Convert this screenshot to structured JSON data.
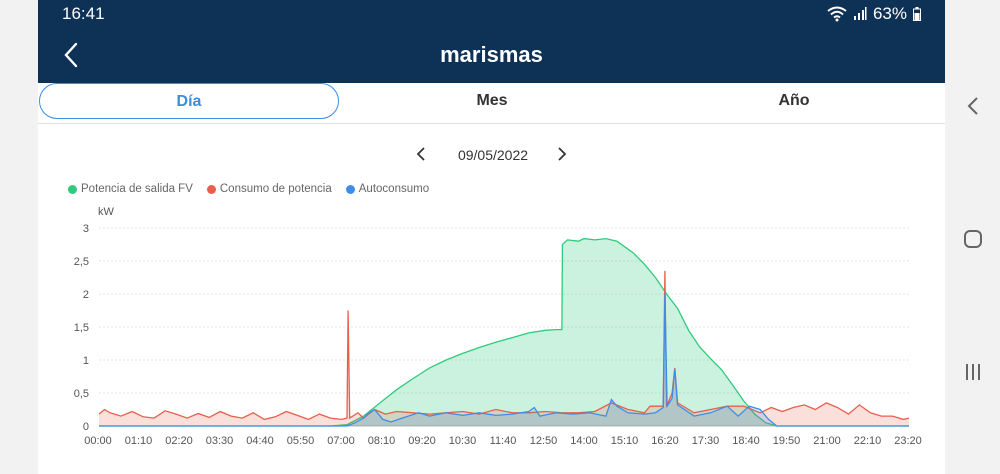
{
  "status": {
    "time": "16:41",
    "battery": "63%"
  },
  "header": {
    "title": "marismas"
  },
  "tabs": [
    {
      "label": "Día"
    },
    {
      "label": "Mes"
    },
    {
      "label": "Año"
    }
  ],
  "date": {
    "value": "09/05/2022"
  },
  "colors": {
    "pv": "#2fca7d",
    "consumo": "#e8604c",
    "auto": "#3d8ee8",
    "header": "#0e3156",
    "accent": "#3c8ce0"
  },
  "chart_data": {
    "type": "area",
    "ylabel": "kW",
    "ylim": [
      0,
      3
    ],
    "yticks": [
      "0",
      "0,5",
      "1",
      "1,5",
      "2",
      "2,5",
      "3"
    ],
    "xticks": [
      "00:00",
      "01:10",
      "02:20",
      "03:30",
      "04:40",
      "05:50",
      "07:00",
      "08:10",
      "09:20",
      "10:30",
      "11:40",
      "12:50",
      "14:00",
      "15:10",
      "16:20",
      "17:30",
      "18:40",
      "19:50",
      "21:00",
      "22:10",
      "23:20"
    ],
    "x_start_minutes": 0,
    "x_end_minutes": 1470,
    "series": [
      {
        "name": "Potencia de salida FV",
        "color": "#2fca7d",
        "points": [
          [
            0,
            0
          ],
          [
            420,
            0
          ],
          [
            450,
            0.02
          ],
          [
            480,
            0.15
          ],
          [
            510,
            0.35
          ],
          [
            540,
            0.55
          ],
          [
            570,
            0.72
          ],
          [
            600,
            0.88
          ],
          [
            630,
            1.0
          ],
          [
            660,
            1.1
          ],
          [
            690,
            1.19
          ],
          [
            720,
            1.27
          ],
          [
            750,
            1.34
          ],
          [
            780,
            1.41
          ],
          [
            810,
            1.45
          ],
          [
            830,
            1.46
          ],
          [
            840,
            1.46
          ],
          [
            841,
            2.75
          ],
          [
            850,
            2.82
          ],
          [
            870,
            2.8
          ],
          [
            880,
            2.84
          ],
          [
            900,
            2.82
          ],
          [
            920,
            2.84
          ],
          [
            940,
            2.8
          ],
          [
            950,
            2.74
          ],
          [
            970,
            2.62
          ],
          [
            990,
            2.45
          ],
          [
            1010,
            2.25
          ],
          [
            1030,
            2.0
          ],
          [
            1050,
            1.78
          ],
          [
            1070,
            1.45
          ],
          [
            1090,
            1.2
          ],
          [
            1110,
            1.02
          ],
          [
            1130,
            0.85
          ],
          [
            1150,
            0.62
          ],
          [
            1170,
            0.38
          ],
          [
            1190,
            0.18
          ],
          [
            1210,
            0.05
          ],
          [
            1230,
            0
          ],
          [
            1470,
            0
          ]
        ]
      },
      {
        "name": "Consumo de potencia",
        "color": "#e8604c",
        "points": [
          [
            0,
            0.18
          ],
          [
            10,
            0.25
          ],
          [
            20,
            0.2
          ],
          [
            40,
            0.15
          ],
          [
            60,
            0.22
          ],
          [
            80,
            0.14
          ],
          [
            100,
            0.12
          ],
          [
            120,
            0.23
          ],
          [
            140,
            0.18
          ],
          [
            160,
            0.12
          ],
          [
            180,
            0.19
          ],
          [
            200,
            0.13
          ],
          [
            220,
            0.22
          ],
          [
            240,
            0.15
          ],
          [
            260,
            0.12
          ],
          [
            280,
            0.2
          ],
          [
            300,
            0.1
          ],
          [
            320,
            0.14
          ],
          [
            340,
            0.22
          ],
          [
            360,
            0.16
          ],
          [
            380,
            0.1
          ],
          [
            400,
            0.18
          ],
          [
            420,
            0.12
          ],
          [
            440,
            0.1
          ],
          [
            450,
            0.12
          ],
          [
            452,
            1.75
          ],
          [
            455,
            0.12
          ],
          [
            470,
            0.2
          ],
          [
            480,
            0.12
          ],
          [
            500,
            0.25
          ],
          [
            520,
            0.18
          ],
          [
            540,
            0.22
          ],
          [
            570,
            0.2
          ],
          [
            600,
            0.18
          ],
          [
            630,
            0.2
          ],
          [
            660,
            0.22
          ],
          [
            690,
            0.18
          ],
          [
            720,
            0.25
          ],
          [
            750,
            0.2
          ],
          [
            780,
            0.2
          ],
          [
            810,
            0.22
          ],
          [
            840,
            0.2
          ],
          [
            870,
            0.2
          ],
          [
            900,
            0.22
          ],
          [
            930,
            0.35
          ],
          [
            960,
            0.25
          ],
          [
            990,
            0.2
          ],
          [
            1000,
            0.3
          ],
          [
            1024,
            0.3
          ],
          [
            1027,
            2.35
          ],
          [
            1030,
            0.3
          ],
          [
            1040,
            0.5
          ],
          [
            1045,
            0.88
          ],
          [
            1050,
            0.35
          ],
          [
            1080,
            0.2
          ],
          [
            1110,
            0.25
          ],
          [
            1140,
            0.3
          ],
          [
            1170,
            0.3
          ],
          [
            1200,
            0.2
          ],
          [
            1220,
            0.28
          ],
          [
            1240,
            0.22
          ],
          [
            1260,
            0.28
          ],
          [
            1280,
            0.32
          ],
          [
            1300,
            0.25
          ],
          [
            1320,
            0.35
          ],
          [
            1340,
            0.28
          ],
          [
            1360,
            0.18
          ],
          [
            1380,
            0.32
          ],
          [
            1400,
            0.2
          ],
          [
            1420,
            0.15
          ],
          [
            1440,
            0.15
          ],
          [
            1460,
            0.1
          ],
          [
            1470,
            0.12
          ]
        ]
      },
      {
        "name": "Autoconsumo",
        "color": "#3d8ee8",
        "points": [
          [
            0,
            0
          ],
          [
            450,
            0
          ],
          [
            465,
            0.05
          ],
          [
            480,
            0.12
          ],
          [
            490,
            0.2
          ],
          [
            500,
            0.25
          ],
          [
            515,
            0.1
          ],
          [
            530,
            0.06
          ],
          [
            550,
            0.12
          ],
          [
            580,
            0.2
          ],
          [
            600,
            0.15
          ],
          [
            630,
            0.2
          ],
          [
            660,
            0.16
          ],
          [
            690,
            0.2
          ],
          [
            720,
            0.16
          ],
          [
            750,
            0.18
          ],
          [
            780,
            0.22
          ],
          [
            790,
            0.28
          ],
          [
            800,
            0.15
          ],
          [
            830,
            0.2
          ],
          [
            860,
            0.18
          ],
          [
            890,
            0.2
          ],
          [
            920,
            0.15
          ],
          [
            930,
            0.4
          ],
          [
            940,
            0.3
          ],
          [
            960,
            0.2
          ],
          [
            990,
            0.18
          ],
          [
            1010,
            0.2
          ],
          [
            1024,
            0.28
          ],
          [
            1027,
            2.0
          ],
          [
            1031,
            0.3
          ],
          [
            1040,
            0.42
          ],
          [
            1045,
            0.86
          ],
          [
            1050,
            0.32
          ],
          [
            1080,
            0.15
          ],
          [
            1110,
            0.2
          ],
          [
            1140,
            0.3
          ],
          [
            1160,
            0.15
          ],
          [
            1180,
            0.3
          ],
          [
            1200,
            0.25
          ],
          [
            1215,
            0.1
          ],
          [
            1230,
            0
          ],
          [
            1470,
            0
          ]
        ]
      }
    ]
  }
}
